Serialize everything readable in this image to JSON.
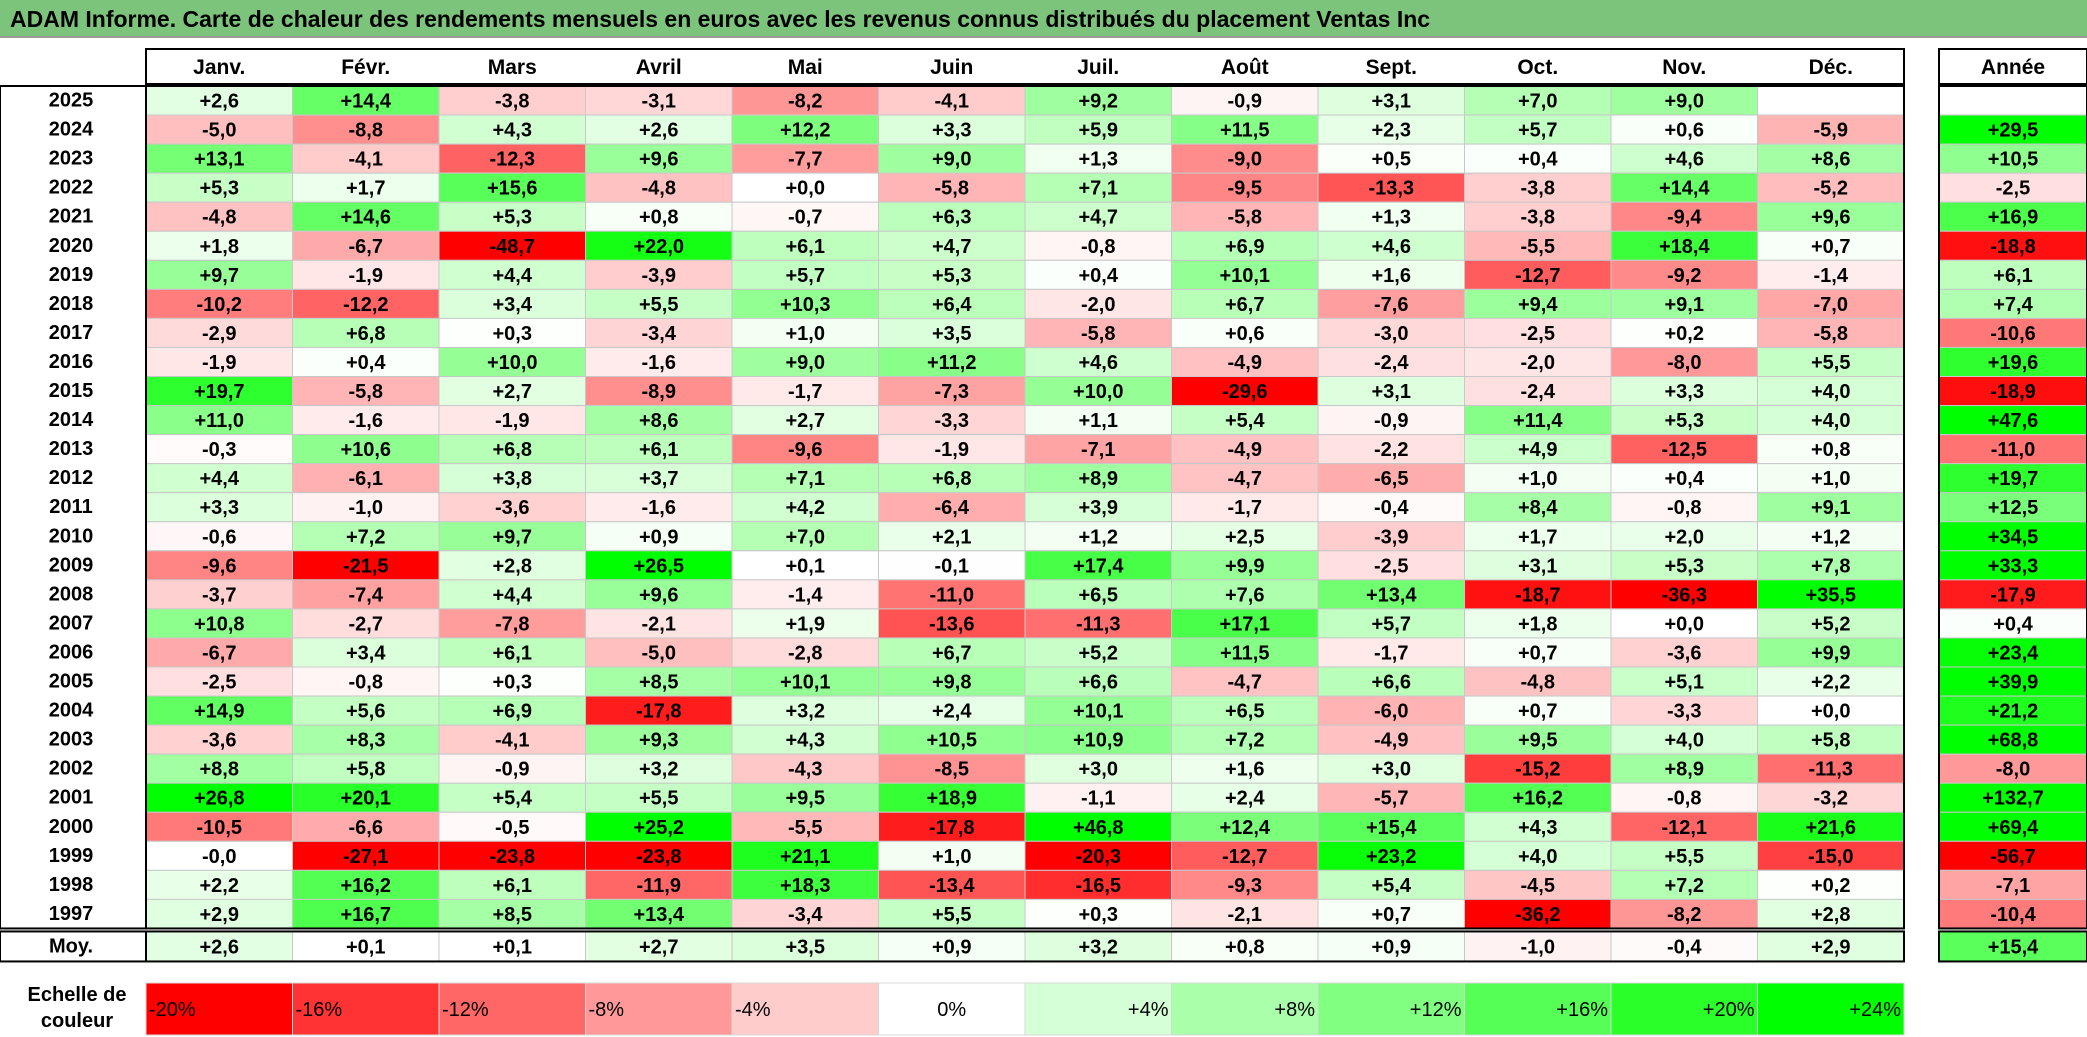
{
  "title": "ADAM Informe. Carte de chaleur des rendements mensuels en euros avec les revenus connus distribués du placement Ventas Inc",
  "chart_data": {
    "type": "heatmap",
    "months": [
      "Janv.",
      "Févr.",
      "Mars",
      "Avril",
      "Mai",
      "Juin",
      "Juil.",
      "Août",
      "Sept.",
      "Oct.",
      "Nov.",
      "Déc."
    ],
    "year_header": "Année",
    "rows": [
      {
        "year": "2025",
        "values": [
          "+2,6",
          "+14,4",
          "-3,8",
          "-3,1",
          "-8,2",
          "-4,1",
          "+9,2",
          "-0,9",
          "+3,1",
          "+7,0",
          "+9,0",
          ""
        ],
        "annual": ""
      },
      {
        "year": "2024",
        "values": [
          "-5,0",
          "-8,8",
          "+4,3",
          "+2,6",
          "+12,2",
          "+3,3",
          "+5,9",
          "+11,5",
          "+2,3",
          "+5,7",
          "+0,6",
          "-5,9"
        ],
        "annual": "+29,5"
      },
      {
        "year": "2023",
        "values": [
          "+13,1",
          "-4,1",
          "-12,3",
          "+9,6",
          "-7,7",
          "+9,0",
          "+1,3",
          "-9,0",
          "+0,5",
          "+0,4",
          "+4,6",
          "+8,6"
        ],
        "annual": "+10,5"
      },
      {
        "year": "2022",
        "values": [
          "+5,3",
          "+1,7",
          "+15,6",
          "-4,8",
          "+0,0",
          "-5,8",
          "+7,1",
          "-9,5",
          "-13,3",
          "-3,8",
          "+14,4",
          "-5,2"
        ],
        "annual": "-2,5"
      },
      {
        "year": "2021",
        "values": [
          "-4,8",
          "+14,6",
          "+5,3",
          "+0,8",
          "-0,7",
          "+6,3",
          "+4,7",
          "-5,8",
          "+1,3",
          "-3,8",
          "-9,4",
          "+9,6"
        ],
        "annual": "+16,9"
      },
      {
        "year": "2020",
        "values": [
          "+1,8",
          "-6,7",
          "-48,7",
          "+22,0",
          "+6,1",
          "+4,7",
          "-0,8",
          "+6,9",
          "+4,6",
          "-5,5",
          "+18,4",
          "+0,7"
        ],
        "annual": "-18,8"
      },
      {
        "year": "2019",
        "values": [
          "+9,7",
          "-1,9",
          "+4,4",
          "-3,9",
          "+5,7",
          "+5,3",
          "+0,4",
          "+10,1",
          "+1,6",
          "-12,7",
          "-9,2",
          "-1,4"
        ],
        "annual": "+6,1"
      },
      {
        "year": "2018",
        "values": [
          "-10,2",
          "-12,2",
          "+3,4",
          "+5,5",
          "+10,3",
          "+6,4",
          "-2,0",
          "+6,7",
          "-7,6",
          "+9,4",
          "+9,1",
          "-7,0"
        ],
        "annual": "+7,4"
      },
      {
        "year": "2017",
        "values": [
          "-2,9",
          "+6,8",
          "+0,3",
          "-3,4",
          "+1,0",
          "+3,5",
          "-5,8",
          "+0,6",
          "-3,0",
          "-2,5",
          "+0,2",
          "-5,8"
        ],
        "annual": "-10,6"
      },
      {
        "year": "2016",
        "values": [
          "-1,9",
          "+0,4",
          "+10,0",
          "-1,6",
          "+9,0",
          "+11,2",
          "+4,6",
          "-4,9",
          "-2,4",
          "-2,0",
          "-8,0",
          "+5,5"
        ],
        "annual": "+19,6"
      },
      {
        "year": "2015",
        "values": [
          "+19,7",
          "-5,8",
          "+2,7",
          "-8,9",
          "-1,7",
          "-7,3",
          "+10,0",
          "-29,6",
          "+3,1",
          "-2,4",
          "+3,3",
          "+4,0"
        ],
        "annual": "-18,9"
      },
      {
        "year": "2014",
        "values": [
          "+11,0",
          "-1,6",
          "-1,9",
          "+8,6",
          "+2,7",
          "-3,3",
          "+1,1",
          "+5,4",
          "-0,9",
          "+11,4",
          "+5,3",
          "+4,0"
        ],
        "annual": "+47,6"
      },
      {
        "year": "2013",
        "values": [
          "-0,3",
          "+10,6",
          "+6,8",
          "+6,1",
          "-9,6",
          "-1,9",
          "-7,1",
          "-4,9",
          "-2,2",
          "+4,9",
          "-12,5",
          "+0,8"
        ],
        "annual": "-11,0"
      },
      {
        "year": "2012",
        "values": [
          "+4,4",
          "-6,1",
          "+3,8",
          "+3,7",
          "+7,1",
          "+6,8",
          "+8,9",
          "-4,7",
          "-6,5",
          "+1,0",
          "+0,4",
          "+1,0"
        ],
        "annual": "+19,7"
      },
      {
        "year": "2011",
        "values": [
          "+3,3",
          "-1,0",
          "-3,6",
          "-1,6",
          "+4,2",
          "-6,4",
          "+3,9",
          "-1,7",
          "-0,4",
          "+8,4",
          "-0,8",
          "+9,1"
        ],
        "annual": "+12,5"
      },
      {
        "year": "2010",
        "values": [
          "-0,6",
          "+7,2",
          "+9,7",
          "+0,9",
          "+7,0",
          "+2,1",
          "+1,2",
          "+2,5",
          "-3,9",
          "+1,7",
          "+2,0",
          "+1,2"
        ],
        "annual": "+34,5"
      },
      {
        "year": "2009",
        "values": [
          "-9,6",
          "-21,5",
          "+2,8",
          "+26,5",
          "+0,1",
          "-0,1",
          "+17,4",
          "+9,9",
          "-2,5",
          "+3,1",
          "+5,3",
          "+7,8"
        ],
        "annual": "+33,3"
      },
      {
        "year": "2008",
        "values": [
          "-3,7",
          "-7,4",
          "+4,4",
          "+9,6",
          "-1,4",
          "-11,0",
          "+6,5",
          "+7,6",
          "+13,4",
          "-18,7",
          "-36,3",
          "+35,5"
        ],
        "annual": "-17,9"
      },
      {
        "year": "2007",
        "values": [
          "+10,8",
          "-2,7",
          "-7,8",
          "-2,1",
          "+1,9",
          "-13,6",
          "-11,3",
          "+17,1",
          "+5,7",
          "+1,8",
          "+0,0",
          "+5,2"
        ],
        "annual": "+0,4"
      },
      {
        "year": "2006",
        "values": [
          "-6,7",
          "+3,4",
          "+6,1",
          "-5,0",
          "-2,8",
          "+6,7",
          "+5,2",
          "+11,5",
          "-1,7",
          "+0,7",
          "-3,6",
          "+9,9"
        ],
        "annual": "+23,4"
      },
      {
        "year": "2005",
        "values": [
          "-2,5",
          "-0,8",
          "+0,3",
          "+8,5",
          "+10,1",
          "+9,8",
          "+6,6",
          "-4,7",
          "+6,6",
          "-4,8",
          "+5,1",
          "+2,2"
        ],
        "annual": "+39,9"
      },
      {
        "year": "2004",
        "values": [
          "+14,9",
          "+5,6",
          "+6,9",
          "-17,8",
          "+3,2",
          "+2,4",
          "+10,1",
          "+6,5",
          "-6,0",
          "+0,7",
          "-3,3",
          "+0,0"
        ],
        "annual": "+21,2"
      },
      {
        "year": "2003",
        "values": [
          "-3,6",
          "+8,3",
          "-4,1",
          "+9,3",
          "+4,3",
          "+10,5",
          "+10,9",
          "+7,2",
          "-4,9",
          "+9,5",
          "+4,0",
          "+5,8"
        ],
        "annual": "+68,8"
      },
      {
        "year": "2002",
        "values": [
          "+8,8",
          "+5,8",
          "-0,9",
          "+3,2",
          "-4,3",
          "-8,5",
          "+3,0",
          "+1,6",
          "+3,0",
          "-15,2",
          "+8,9",
          "-11,3"
        ],
        "annual": "-8,0"
      },
      {
        "year": "2001",
        "values": [
          "+26,8",
          "+20,1",
          "+5,4",
          "+5,5",
          "+9,5",
          "+18,9",
          "-1,1",
          "+2,4",
          "-5,7",
          "+16,2",
          "-0,8",
          "-3,2"
        ],
        "annual": "+132,7"
      },
      {
        "year": "2000",
        "values": [
          "-10,5",
          "-6,6",
          "-0,5",
          "+25,2",
          "-5,5",
          "-17,8",
          "+46,8",
          "+12,4",
          "+15,4",
          "+4,3",
          "-12,1",
          "+21,6"
        ],
        "annual": "+69,4"
      },
      {
        "year": "1999",
        "values": [
          "-0,0",
          "-27,1",
          "-23,8",
          "-23,8",
          "+21,1",
          "+1,0",
          "-20,3",
          "-12,7",
          "+23,2",
          "+4,0",
          "+5,5",
          "-15,0"
        ],
        "annual": "-56,7"
      },
      {
        "year": "1998",
        "values": [
          "+2,2",
          "+16,2",
          "+6,1",
          "-11,9",
          "+18,3",
          "-13,4",
          "-16,5",
          "-9,3",
          "+5,4",
          "-4,5",
          "+7,2",
          "+0,2"
        ],
        "annual": "-7,1"
      },
      {
        "year": "1997",
        "values": [
          "+2,9",
          "+16,7",
          "+8,5",
          "+13,4",
          "-3,4",
          "+5,5",
          "+0,3",
          "-2,1",
          "+0,7",
          "-36,2",
          "-8,2",
          "+2,8"
        ],
        "annual": "-10,4"
      }
    ],
    "average": {
      "label": "Moy.",
      "values": [
        "+2,6",
        "+0,1",
        "+0,1",
        "+2,7",
        "+3,5",
        "+0,9",
        "+3,2",
        "+0,8",
        "+0,9",
        "-1,0",
        "-0,4",
        "+2,9"
      ],
      "annual": "+15,4"
    },
    "scale": {
      "label": [
        "Echelle de",
        "couleur"
      ],
      "steps": [
        "-20%",
        "-16%",
        "-12%",
        "-8%",
        "-4%",
        "0%",
        "+4%",
        "+8%",
        "+12%",
        "+16%",
        "+20%",
        "+24%"
      ]
    },
    "colors": {
      "title_bg": "#7cc47c",
      "negative_max": "#ff0000",
      "neutral": "#ffffff",
      "positive_max": "#00ff00"
    }
  }
}
